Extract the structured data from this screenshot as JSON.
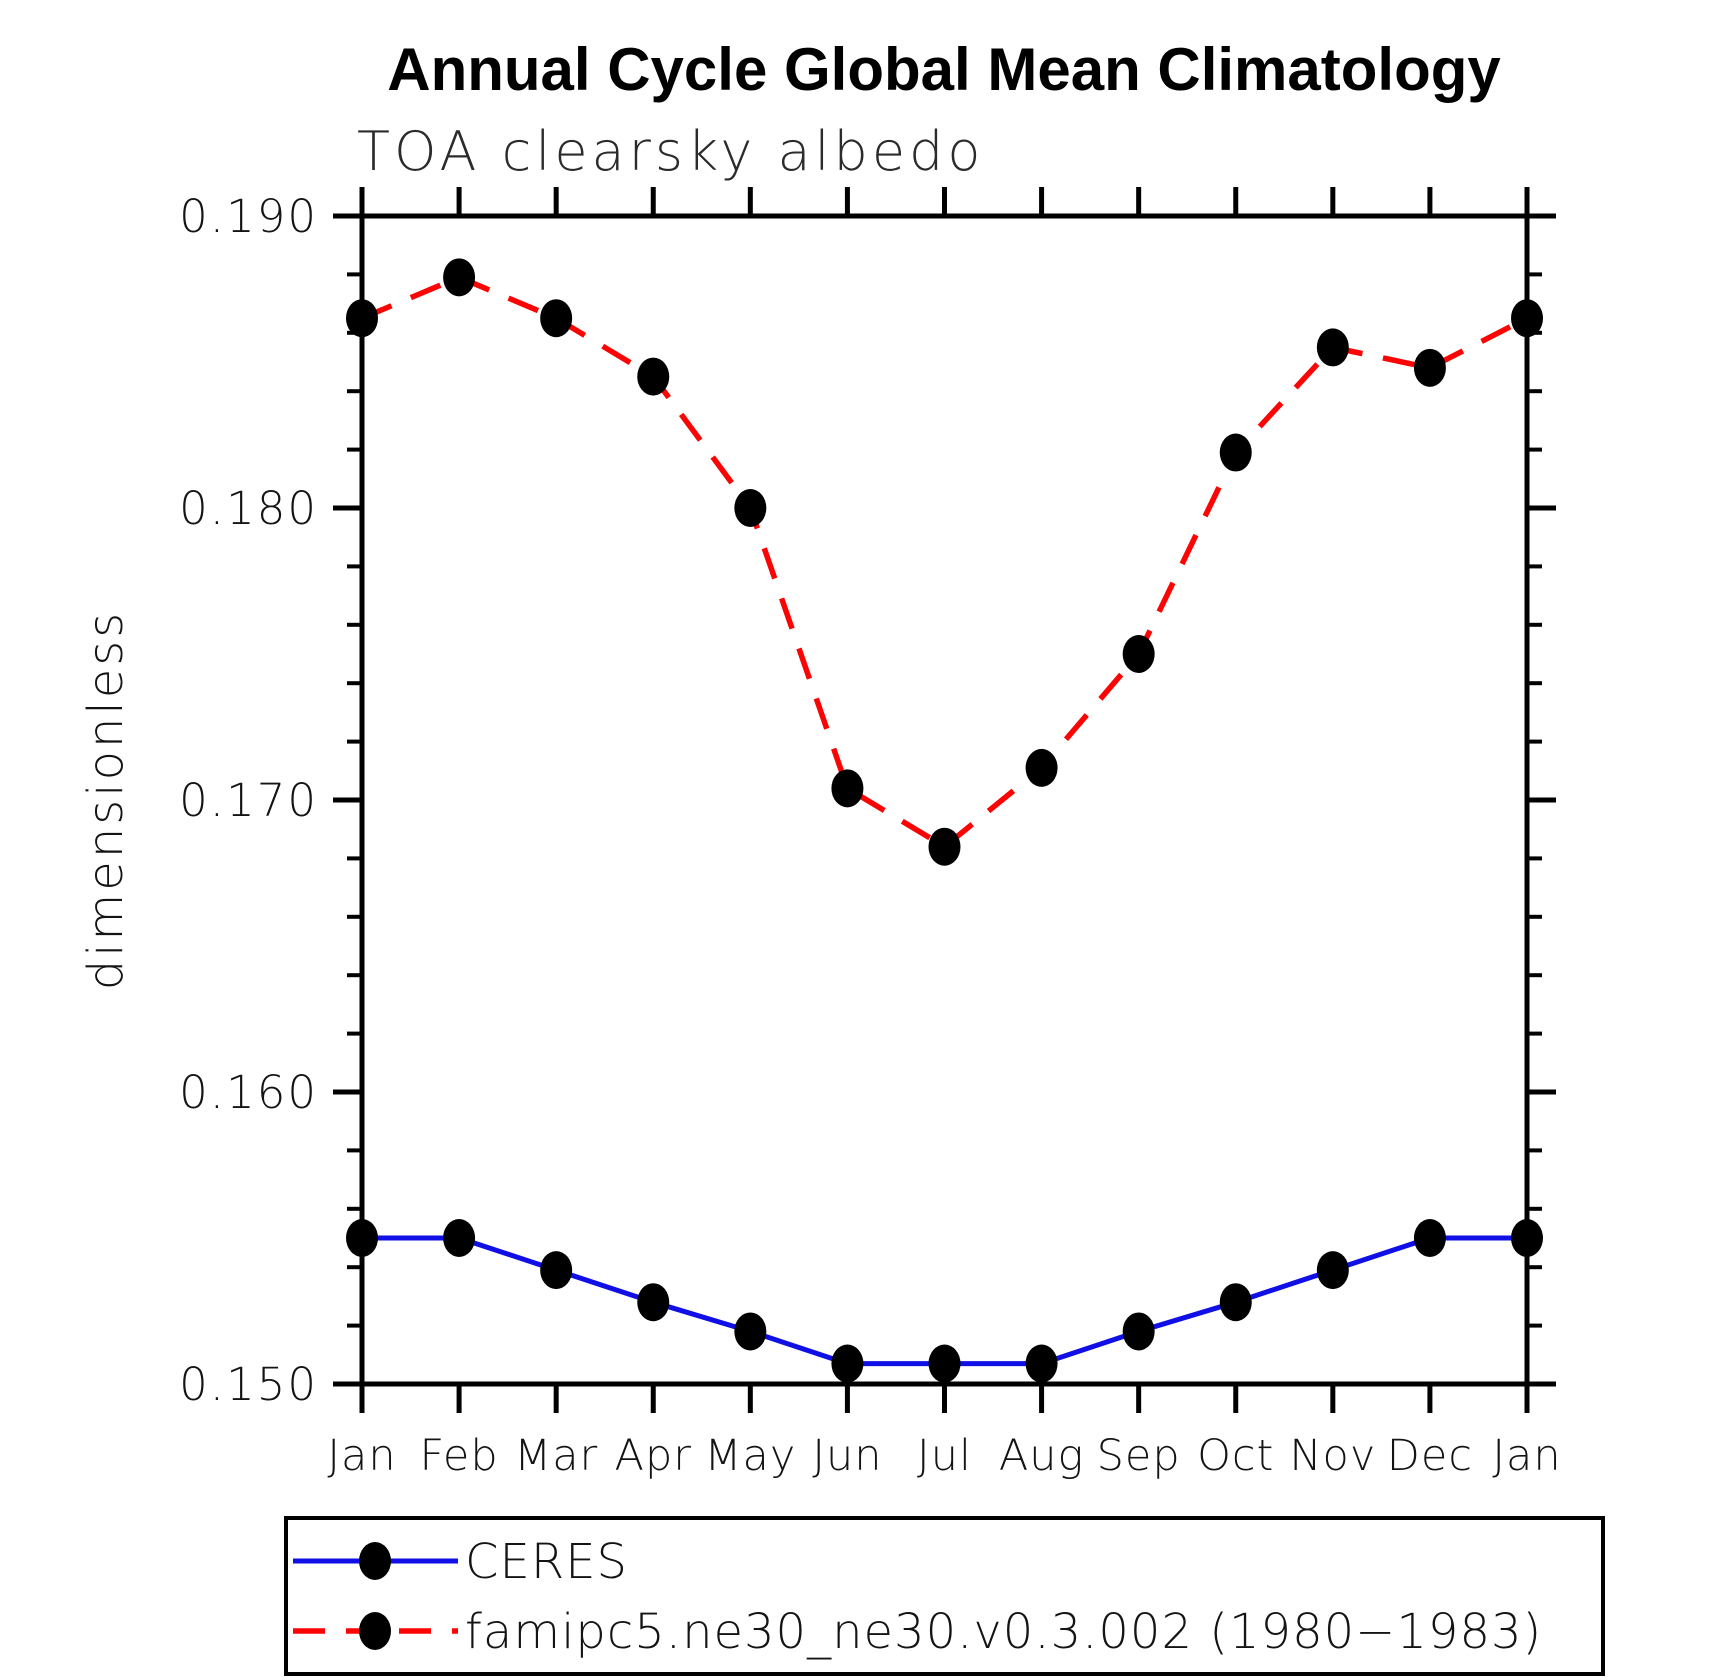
{
  "chart_data": {
    "type": "line",
    "title": "Annual Cycle Global Mean Climatology",
    "subtitle": "TOA clearsky albedo",
    "ylabel": "dimensionless",
    "xlabel": "",
    "categories": [
      "Jan",
      "Feb",
      "Mar",
      "Apr",
      "May",
      "Jun",
      "Jul",
      "Aug",
      "Sep",
      "Oct",
      "Nov",
      "Dec",
      "Jan"
    ],
    "ylim": [
      0.15,
      0.19
    ],
    "ytick_values": [
      0.15,
      0.16,
      0.17,
      0.18,
      0.19
    ],
    "ytick_labels": [
      "0.150",
      "0.160",
      "0.170",
      "0.180",
      "0.190"
    ],
    "yminor_step": 0.002,
    "grid": false,
    "legend_position": "bottom-left",
    "series": [
      {
        "name": "CERES",
        "line_style": "solid",
        "color": "#0f0fe6",
        "marker": "dot",
        "marker_color": "#000000",
        "values": [
          0.155,
          0.155,
          0.1539,
          0.1528,
          0.1518,
          0.1507,
          0.1507,
          0.1507,
          0.1518,
          0.1528,
          0.1539,
          0.155,
          0.155
        ]
      },
      {
        "name": "famipc5.ne30_ne30.v0.3.002 (1980−1983)",
        "line_style": "dashed",
        "color": "#fb0404",
        "marker": "dot",
        "marker_color": "#000000",
        "values": [
          0.1865,
          0.1879,
          0.1865,
          0.1845,
          0.18,
          0.1704,
          0.1684,
          0.1711,
          0.175,
          0.1819,
          0.1855,
          0.1848,
          0.1865
        ]
      }
    ]
  }
}
